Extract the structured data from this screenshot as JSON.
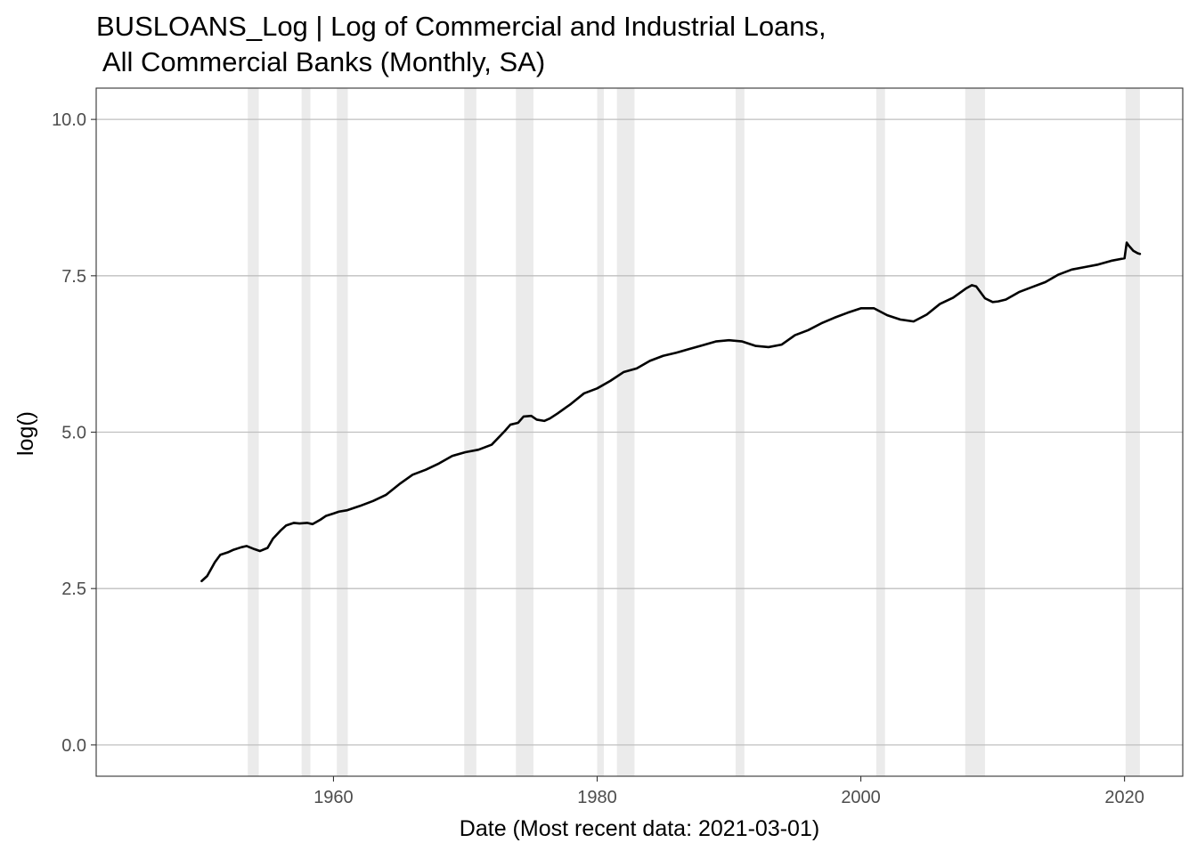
{
  "chart_data": {
    "type": "line",
    "title": "BUSLOANS_Log | Log of Commercial and Industrial Loans,",
    "subtitle": " All Commercial Banks (Monthly, SA)",
    "xlabel": "Date (Most recent data: 2021-03-01)",
    "ylabel": "log()",
    "x_type": "date",
    "xlim": [
      "1942-01-01",
      "2024-06-01"
    ],
    "ylim": [
      -0.5,
      10.5
    ],
    "x_ticks": [
      "1960",
      "1980",
      "2000",
      "2020"
    ],
    "x_tick_dates": [
      "1960-01-01",
      "1980-01-01",
      "2000-01-01",
      "2020-01-01"
    ],
    "y_ticks": [
      "0.0",
      "2.5",
      "5.0",
      "7.5",
      "10.0"
    ],
    "y_tick_values": [
      0,
      2.5,
      5,
      7.5,
      10
    ],
    "grid": "horizontal major",
    "legend": "none",
    "colors": {
      "line": "#000000",
      "recession": "#ebebeb",
      "grid": "#bfbfbf",
      "panel_border": "#333333",
      "tick_text": "#4d4d4d"
    },
    "recessions": [
      [
        "1953-07-01",
        "1954-05-01"
      ],
      [
        "1957-08-01",
        "1958-04-01"
      ],
      [
        "1960-04-01",
        "1961-02-01"
      ],
      [
        "1969-12-01",
        "1970-11-01"
      ],
      [
        "1973-11-01",
        "1975-03-01"
      ],
      [
        "1980-01-01",
        "1980-07-01"
      ],
      [
        "1981-07-01",
        "1982-11-01"
      ],
      [
        "1990-07-01",
        "1991-03-01"
      ],
      [
        "2001-03-01",
        "2001-11-01"
      ],
      [
        "2007-12-01",
        "2009-06-01"
      ],
      [
        "2020-02-01",
        "2021-03-01"
      ]
    ],
    "series": [
      {
        "x": [
          "1950-01-01",
          "1950-06-01",
          "1951-01-01",
          "1951-06-01",
          "1952-01-01",
          "1952-06-01",
          "1953-01-01",
          "1953-06-01",
          "1954-01-01",
          "1954-06-01",
          "1955-01-01",
          "1955-06-01",
          "1956-01-01",
          "1956-06-01",
          "1957-01-01",
          "1957-06-01",
          "1958-01-01",
          "1958-06-01",
          "1959-01-01",
          "1959-06-01",
          "1960-01-01",
          "1960-06-01",
          "1961-01-01",
          "1962-01-01",
          "1963-01-01",
          "1964-01-01",
          "1965-01-01",
          "1966-01-01",
          "1967-01-01",
          "1968-01-01",
          "1969-01-01",
          "1970-01-01",
          "1971-01-01",
          "1972-01-01",
          "1973-01-01",
          "1973-06-01",
          "1974-01-01",
          "1974-06-01",
          "1975-01-01",
          "1975-06-01",
          "1976-01-01",
          "1976-06-01",
          "1977-01-01",
          "1978-01-01",
          "1979-01-01",
          "1980-01-01",
          "1981-01-01",
          "1982-01-01",
          "1983-01-01",
          "1984-01-01",
          "1985-01-01",
          "1986-01-01",
          "1987-01-01",
          "1988-01-01",
          "1989-01-01",
          "1990-01-01",
          "1991-01-01",
          "1992-01-01",
          "1993-01-01",
          "1994-01-01",
          "1995-01-01",
          "1996-01-01",
          "1997-01-01",
          "1998-01-01",
          "1999-01-01",
          "2000-01-01",
          "2001-01-01",
          "2002-01-01",
          "2003-01-01",
          "2004-01-01",
          "2005-01-01",
          "2006-01-01",
          "2007-01-01",
          "2008-01-01",
          "2008-06-01",
          "2008-10-01",
          "2009-06-01",
          "2010-01-01",
          "2010-06-01",
          "2011-01-01",
          "2012-01-01",
          "2013-01-01",
          "2014-01-01",
          "2015-01-01",
          "2016-01-01",
          "2017-01-01",
          "2018-01-01",
          "2019-01-01",
          "2020-01-01",
          "2020-03-01",
          "2020-05-01",
          "2020-09-01",
          "2021-01-01",
          "2021-03-01"
        ],
        "values": [
          2.62,
          2.7,
          2.92,
          3.04,
          3.08,
          3.12,
          3.16,
          3.18,
          3.13,
          3.1,
          3.15,
          3.3,
          3.43,
          3.51,
          3.55,
          3.54,
          3.55,
          3.53,
          3.6,
          3.66,
          3.7,
          3.73,
          3.75,
          3.82,
          3.9,
          4.0,
          4.17,
          4.32,
          4.4,
          4.5,
          4.62,
          4.68,
          4.72,
          4.8,
          5.02,
          5.12,
          5.15,
          5.25,
          5.26,
          5.2,
          5.18,
          5.22,
          5.3,
          5.45,
          5.62,
          5.7,
          5.82,
          5.96,
          6.02,
          6.14,
          6.22,
          6.27,
          6.33,
          6.39,
          6.45,
          6.47,
          6.45,
          6.38,
          6.36,
          6.4,
          6.55,
          6.63,
          6.74,
          6.83,
          6.91,
          6.98,
          6.98,
          6.87,
          6.8,
          6.77,
          6.88,
          7.05,
          7.15,
          7.3,
          7.35,
          7.33,
          7.14,
          7.08,
          7.09,
          7.12,
          7.24,
          7.32,
          7.4,
          7.52,
          7.6,
          7.64,
          7.68,
          7.74,
          7.78,
          8.03,
          7.98,
          7.9,
          7.86,
          7.85
        ]
      }
    ]
  }
}
